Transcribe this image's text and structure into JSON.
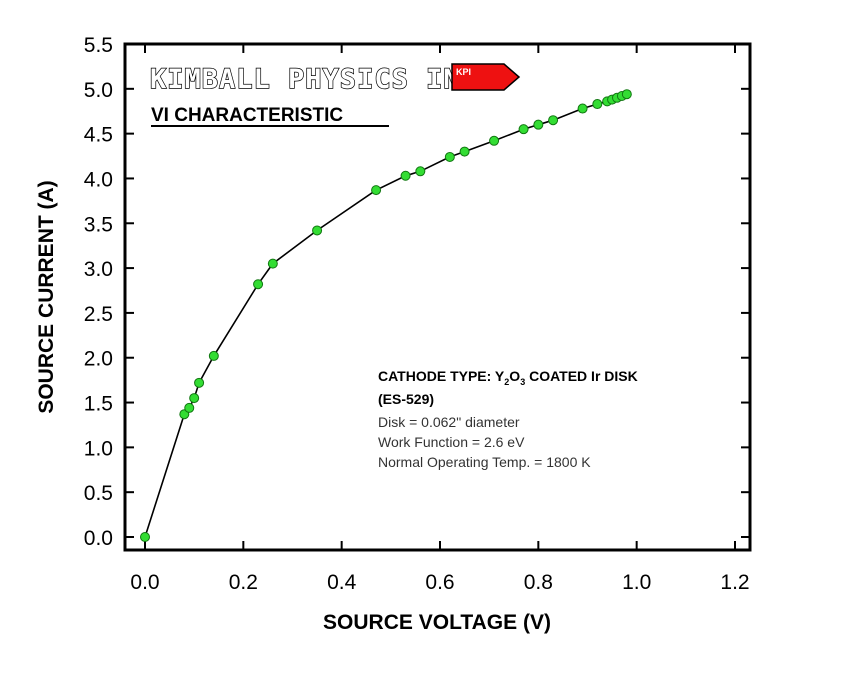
{
  "chart_data": {
    "type": "scatter",
    "title": "KIMBALL PHYSICS INC.",
    "subtitle": "VI CHARACTERISTIC",
    "logo_text": "KPI",
    "xlabel": "SOURCE VOLTAGE (V)",
    "ylabel": "SOURCE CURRENT (A)",
    "xlim": [
      0.0,
      1.2
    ],
    "ylim": [
      0.0,
      5.5
    ],
    "x_ticks": [
      "0.0",
      "0.2",
      "0.4",
      "0.6",
      "0.8",
      "1.0",
      "1.2"
    ],
    "y_ticks": [
      "0.0",
      "0.5",
      "1.0",
      "1.5",
      "2.0",
      "2.5",
      "3.0",
      "3.5",
      "4.0",
      "4.5",
      "5.0",
      "5.5"
    ],
    "grid": false,
    "connect_points": true,
    "marker_color": "#33dd33",
    "line_color": "#000000",
    "logo_color": "#ee1111",
    "series": [
      {
        "x": [
          0.0,
          0.08,
          0.09,
          0.1,
          0.11,
          0.14,
          0.23,
          0.26,
          0.35,
          0.47,
          0.53,
          0.56,
          0.62,
          0.65,
          0.71,
          0.77,
          0.8,
          0.83,
          0.89,
          0.92,
          0.94,
          0.95,
          0.96,
          0.97,
          0.98
        ],
        "y": [
          0.0,
          1.37,
          1.44,
          1.55,
          1.72,
          2.02,
          2.82,
          3.05,
          3.42,
          3.87,
          4.03,
          4.08,
          4.24,
          4.3,
          4.42,
          4.55,
          4.6,
          4.65,
          4.78,
          4.83,
          4.86,
          4.88,
          4.9,
          4.92,
          4.94
        ]
      }
    ],
    "annotation": {
      "line1_prefix": "CATHODE TYPE: Y",
      "line1_sub1": "2",
      "line1_mid": "O",
      "line1_sub2": "3",
      "line1_suffix": " COATED Ir DISK",
      "line2": "(ES-529)",
      "line3": "Disk = 0.062\" diameter",
      "line4": "Work Function = 2.6 eV",
      "line5": "Normal Operating Temp. = 1800 K"
    }
  }
}
